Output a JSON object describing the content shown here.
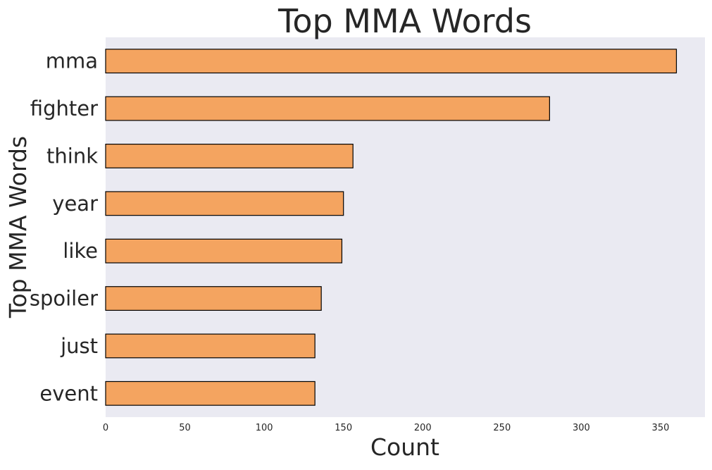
{
  "chart_data": {
    "type": "bar",
    "orientation": "horizontal",
    "title": "Top MMA Words",
    "xlabel": "Count",
    "ylabel": "Top MMA Words",
    "categories": [
      "mma",
      "fighter",
      "think",
      "year",
      "like",
      "spoiler",
      "just",
      "event"
    ],
    "values": [
      360,
      280,
      156,
      150,
      149,
      136,
      132,
      132
    ],
    "x_ticks": [
      "0",
      "50",
      "100",
      "150",
      "200",
      "250",
      "300",
      "350"
    ],
    "xlim": [
      0,
      378
    ],
    "grid": false,
    "bar_color": "#f4a460",
    "bar_edge_color": "#000000",
    "plot_background": "#eaeaf2"
  }
}
